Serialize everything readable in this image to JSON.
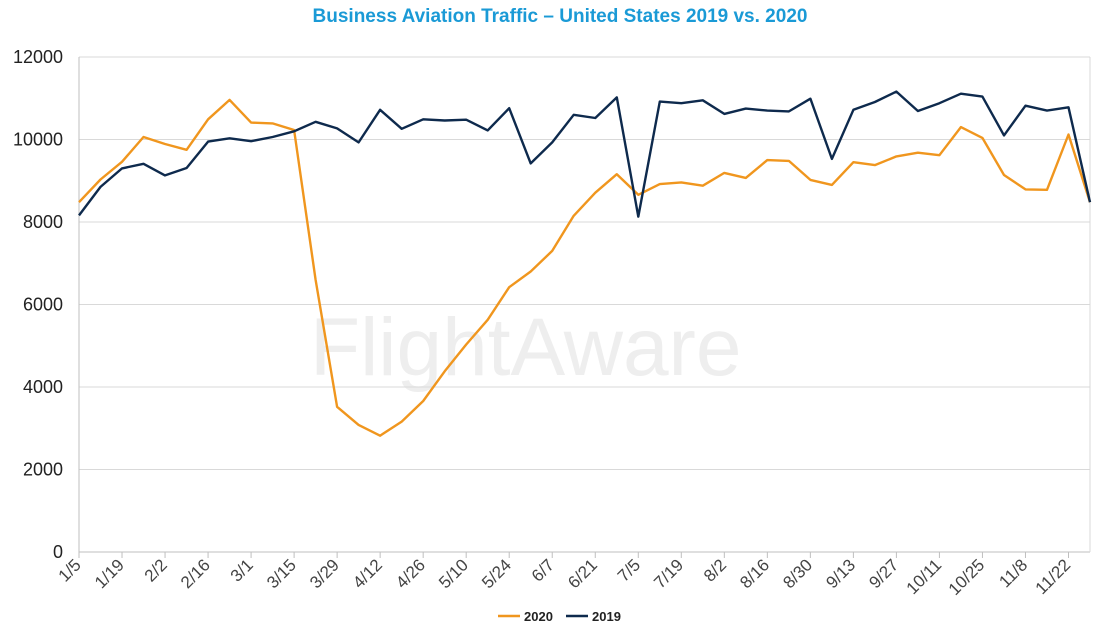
{
  "watermark": "FlightAware",
  "colors": {
    "title": "#1a9ad6",
    "s2020": "#f0961e",
    "s2019": "#0e2a4d",
    "grid": "#d9d9d9",
    "axis": "#bfbfbf"
  },
  "chart_data": {
    "type": "line",
    "title": "Business Aviation Traffic – United States 2019 vs. 2020",
    "xlabel": "",
    "ylabel": "",
    "ylim": [
      0,
      12000
    ],
    "yticks": [
      0,
      2000,
      4000,
      6000,
      8000,
      10000,
      12000
    ],
    "grid": true,
    "legend_position": "bottom",
    "xtick_labels": [
      "1/5",
      "1/19",
      "2/2",
      "2/16",
      "3/1",
      "3/15",
      "3/29",
      "4/12",
      "4/26",
      "5/10",
      "5/24",
      "6/7",
      "6/21",
      "7/5",
      "7/19",
      "8/2",
      "8/16",
      "8/30",
      "9/13",
      "9/27",
      "10/11",
      "10/25",
      "11/8",
      "11/22"
    ],
    "series": [
      {
        "name": "2020",
        "color": "#f0961e",
        "values": [
          8480,
          9030,
          9460,
          10060,
          9890,
          9750,
          10490,
          10960,
          10410,
          10390,
          10230,
          6600,
          3520,
          3080,
          2820,
          3160,
          3660,
          4380,
          5030,
          5630,
          6420,
          6800,
          7300,
          8150,
          8710,
          9160,
          8660,
          8920,
          8960,
          8880,
          9190,
          9070,
          9500,
          9480,
          9020,
          8900,
          9450,
          9380,
          9590,
          9680,
          9620,
          10300,
          10040,
          9140,
          8790,
          8780,
          10120,
          8480
        ]
      },
      {
        "name": "2019",
        "color": "#0e2a4d",
        "values": [
          8160,
          8850,
          9300,
          9410,
          9130,
          9310,
          9950,
          10030,
          9960,
          10060,
          10200,
          10430,
          10270,
          9930,
          10720,
          10260,
          10490,
          10460,
          10480,
          10220,
          10760,
          9420,
          9930,
          10600,
          10520,
          11020,
          8130,
          10920,
          10880,
          10950,
          10620,
          10750,
          10700,
          10680,
          10990,
          9530,
          10720,
          10910,
          11160,
          10690,
          10880,
          11110,
          11040,
          10100,
          10820,
          10700,
          10780,
          8480
        ]
      }
    ]
  }
}
